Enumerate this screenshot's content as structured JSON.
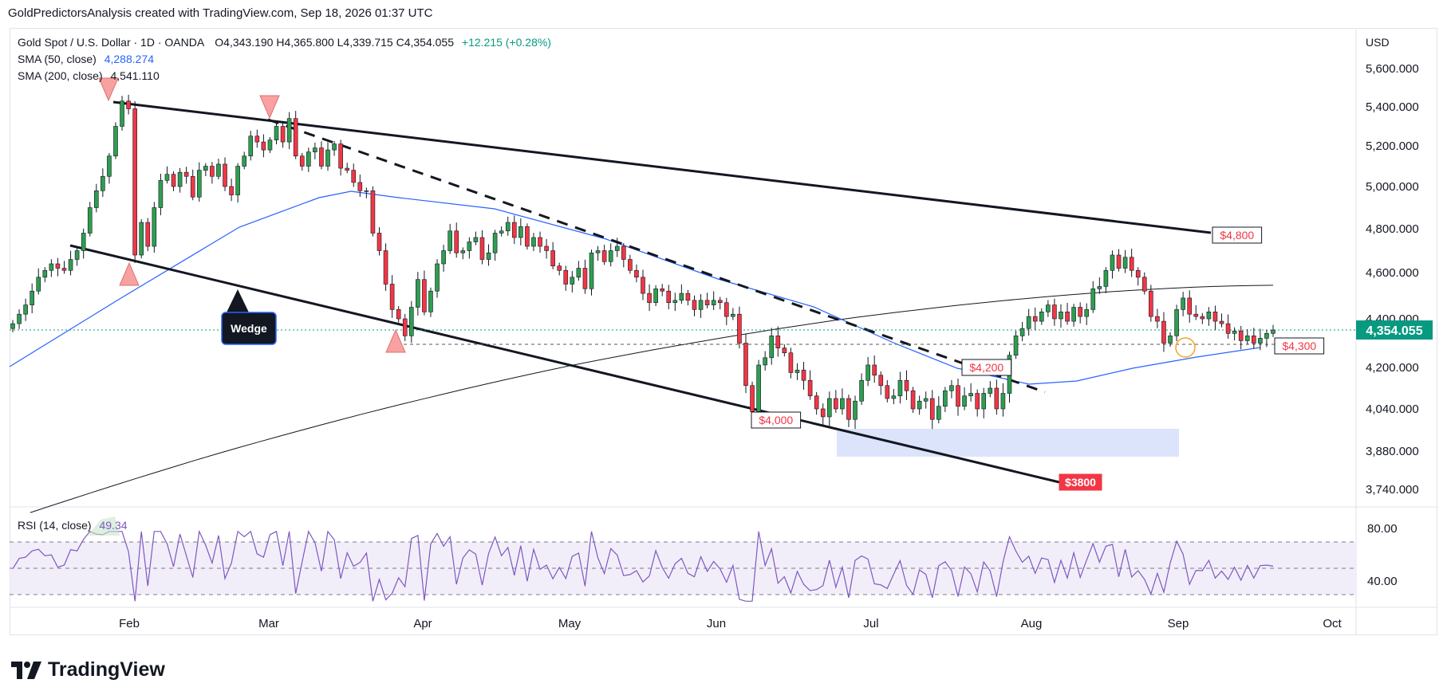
{
  "header": {
    "attribution": "GoldPredictorsAnalysis created with TradingView.com, Sep 18, 2026 01:37 UTC"
  },
  "legend": {
    "symbol": "Gold Spot / U.S. Dollar · 1D · OANDA",
    "ohlc": "O4,343.190  H4,365.800  L4,339.715  C4,354.055",
    "change": "+12.215 (+0.28%)",
    "sma50_label": "SMA (50, close)",
    "sma50_value": "4,288.274",
    "sma200_label": "SMA (200, close)",
    "sma200_value": "4,541.110",
    "rsi_label": "RSI (14, close)",
    "rsi_value": "49.34"
  },
  "currency": "USD",
  "price_badge": "4,354.055",
  "brand": "TradingView",
  "colors": {
    "up": "#22ab94",
    "up_fill": "#2e9e4f",
    "down": "#f23645",
    "sma50": "#2962ff",
    "sma200": "#131722",
    "rsi": "#7e57c2",
    "rsi_band": "#ede7f6",
    "zone": "#d6dffb",
    "current": "#089981",
    "annotation_red": "#f23645",
    "marker": "#f7a1a1"
  },
  "chart_data": {
    "type": "candlestick",
    "title": "Gold Spot / U.S. Dollar · 1D · OANDA",
    "y_ticks": [
      "5,600.000",
      "5,400.000",
      "5,200.000",
      "5,000.000",
      "4,800.000",
      "4,600.000",
      "4,400.000",
      "4,200.000",
      "4,040.000",
      "3,880.000",
      "3,740.000"
    ],
    "x_ticks": [
      "Feb",
      "Mar",
      "Apr",
      "May",
      "Jun",
      "Jul",
      "Aug",
      "Sep",
      "Oct"
    ],
    "ylim": [
      3650,
      5700
    ],
    "current_price": 4354.055,
    "annotations": [
      "$4,800",
      "$4,300",
      "$4,200",
      "$4,000",
      "$3800",
      "Wedge"
    ],
    "rsi": {
      "ticks": [
        "80.00",
        "40.00"
      ],
      "overbought": 70,
      "oversold": 30,
      "last": 49.34
    },
    "series": [
      {
        "name": "SMA (50, close)",
        "last": 4288.274
      },
      {
        "name": "SMA (200, close)",
        "last": 4541.11
      }
    ],
    "candles_close": [
      4380,
      4420,
      4460,
      4520,
      4580,
      4610,
      4640,
      4620,
      4610,
      4660,
      4700,
      4780,
      4900,
      4980,
      5050,
      5150,
      5300,
      5430,
      5390,
      4680,
      4830,
      4720,
      4900,
      5030,
      5060,
      5000,
      5070,
      5050,
      4950,
      5080,
      5100,
      5050,
      5110,
      5000,
      4960,
      5100,
      5150,
      5250,
      5220,
      5180,
      5230,
      5300,
      5220,
      5340,
      5150,
      5100,
      5170,
      5190,
      5100,
      5180,
      5210,
      5090,
      5080,
      5020,
      4980,
      4980,
      4780,
      4700,
      4550,
      4440,
      4400,
      4330,
      4450,
      4570,
      4430,
      4520,
      4640,
      4700,
      4790,
      4690,
      4700,
      4740,
      4760,
      4660,
      4690,
      4780,
      4790,
      4830,
      4760,
      4810,
      4720,
      4760,
      4720,
      4700,
      4630,
      4610,
      4550,
      4580,
      4620,
      4530,
      4690,
      4700,
      4650,
      4700,
      4720,
      4660,
      4610,
      4580,
      4510,
      4470,
      4530,
      4520,
      4470,
      4480,
      4510,
      4480,
      4440,
      4480,
      4460,
      4480,
      4470,
      4410,
      4420,
      4300,
      4130,
      4030,
      4210,
      4240,
      4330,
      4280,
      4260,
      4180,
      4190,
      4150,
      4090,
      4040,
      4010,
      4080,
      4040,
      4080,
      4000,
      4070,
      4150,
      4210,
      4170,
      4130,
      4080,
      4090,
      4150,
      4110,
      4040,
      4070,
      4080,
      4000,
      4050,
      4110,
      4130,
      4050,
      4090,
      4100,
      4040,
      4100,
      4120,
      4040,
      4100,
      4250,
      4330,
      4360,
      4410,
      4390,
      4430,
      4460,
      4400,
      4430,
      4390,
      4450,
      4410,
      4440,
      4530,
      4540,
      4610,
      4680,
      4620,
      4670,
      4610,
      4580,
      4520,
      4410,
      4390,
      4300,
      4330,
      4440,
      4490,
      4420,
      4410,
      4400,
      4430,
      4390,
      4380,
      4340,
      4350,
      4310,
      4330,
      4300,
      4320,
      4340,
      4354
    ]
  }
}
